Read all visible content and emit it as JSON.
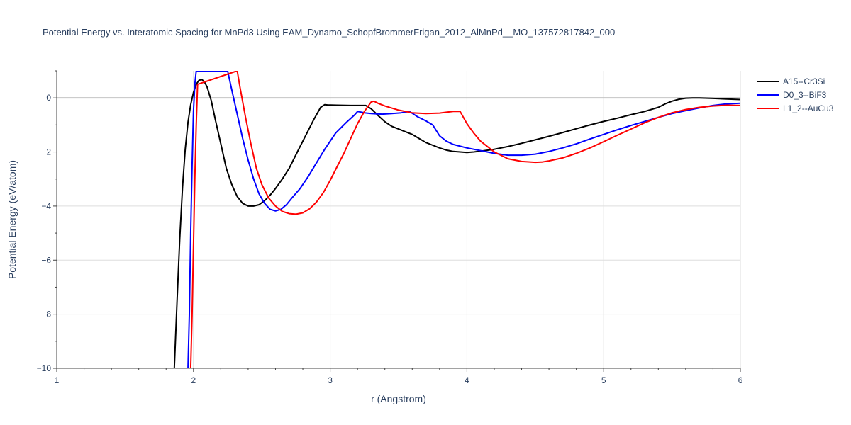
{
  "chart_data": {
    "type": "line",
    "title": "Potential Energy vs. Interatomic Spacing for MnPd3 Using EAM_Dynamo_SchopfBrommerFrigan_2012_AlMnPd__MO_137572817842_000",
    "xlabel": "r (Angstrom)",
    "ylabel": "Potential Energy (eV/atom)",
    "xlim": [
      1,
      6
    ],
    "ylim": [
      -10,
      1
    ],
    "xticks": [
      1,
      2,
      3,
      4,
      5,
      6
    ],
    "xtick_labels": [
      "1",
      "2",
      "3",
      "4",
      "5",
      "6"
    ],
    "yticks": [
      -10,
      -8,
      -6,
      -4,
      -2,
      0
    ],
    "ytick_labels": [
      "−10",
      "−8",
      "−6",
      "−4",
      "−2",
      "0"
    ],
    "grid": true,
    "legend_position": "top-right",
    "series": [
      {
        "name": "A15--Cr3Si",
        "color": "#000000",
        "x": [
          1.86,
          1.88,
          1.9,
          1.92,
          1.94,
          1.96,
          1.98,
          2.0,
          2.02,
          2.04,
          2.06,
          2.08,
          2.1,
          2.13,
          2.16,
          2.2,
          2.24,
          2.28,
          2.32,
          2.36,
          2.4,
          2.44,
          2.48,
          2.52,
          2.56,
          2.6,
          2.65,
          2.7,
          2.76,
          2.82,
          2.88,
          2.93,
          2.96,
          2.98,
          3.05,
          3.15,
          3.26,
          3.3,
          3.35,
          3.4,
          3.45,
          3.5,
          3.55,
          3.6,
          3.65,
          3.7,
          3.75,
          3.8,
          3.85,
          3.9,
          3.95,
          4.0,
          4.05,
          4.1,
          4.2,
          4.3,
          4.4,
          4.5,
          4.6,
          4.7,
          4.8,
          4.9,
          5.0,
          5.1,
          5.2,
          5.3,
          5.4,
          5.45,
          5.5,
          5.55,
          5.6,
          5.65,
          5.7,
          5.8,
          5.9,
          6.0
        ],
        "y": [
          -10.0,
          -7.5,
          -5.2,
          -3.3,
          -1.9,
          -0.9,
          -0.25,
          0.2,
          0.5,
          0.65,
          0.68,
          0.6,
          0.4,
          -0.1,
          -0.8,
          -1.7,
          -2.6,
          -3.2,
          -3.65,
          -3.9,
          -4.0,
          -4.0,
          -3.95,
          -3.8,
          -3.6,
          -3.35,
          -3.0,
          -2.6,
          -2.0,
          -1.4,
          -0.8,
          -0.35,
          -0.25,
          -0.26,
          -0.27,
          -0.28,
          -0.28,
          -0.4,
          -0.65,
          -0.88,
          -1.05,
          -1.15,
          -1.25,
          -1.35,
          -1.5,
          -1.65,
          -1.75,
          -1.85,
          -1.93,
          -1.98,
          -2.0,
          -2.02,
          -2.0,
          -1.97,
          -1.9,
          -1.8,
          -1.68,
          -1.55,
          -1.42,
          -1.28,
          -1.14,
          -1.0,
          -0.87,
          -0.75,
          -0.62,
          -0.5,
          -0.35,
          -0.22,
          -0.12,
          -0.05,
          -0.01,
          0.0,
          0.0,
          -0.02,
          -0.04,
          -0.06
        ]
      },
      {
        "name": "D0_3--BiF3",
        "color": "#0000ff",
        "x": [
          1.96,
          1.97,
          1.98,
          1.99,
          2.0,
          2.01,
          2.02,
          2.25,
          2.28,
          2.32,
          2.36,
          2.4,
          2.44,
          2.48,
          2.52,
          2.56,
          2.6,
          2.64,
          2.68,
          2.72,
          2.78,
          2.84,
          2.9,
          2.96,
          3.04,
          3.12,
          3.18,
          3.2,
          3.25,
          3.3,
          3.38,
          3.45,
          3.52,
          3.58,
          3.64,
          3.7,
          3.75,
          3.8,
          3.85,
          3.9,
          4.0,
          4.1,
          4.2,
          4.3,
          4.4,
          4.5,
          4.6,
          4.7,
          4.8,
          4.9,
          5.0,
          5.1,
          5.2,
          5.3,
          5.4,
          5.5,
          5.6,
          5.7,
          5.8,
          5.9,
          6.0
        ],
        "y": [
          -10.0,
          -8.0,
          -5.0,
          -2.5,
          -0.5,
          0.5,
          1.0,
          1.0,
          0.3,
          -0.6,
          -1.5,
          -2.3,
          -3.0,
          -3.55,
          -3.9,
          -4.12,
          -4.18,
          -4.12,
          -3.95,
          -3.7,
          -3.35,
          -2.9,
          -2.4,
          -1.9,
          -1.3,
          -0.9,
          -0.62,
          -0.5,
          -0.55,
          -0.58,
          -0.6,
          -0.58,
          -0.55,
          -0.5,
          -0.7,
          -0.85,
          -1.0,
          -1.4,
          -1.6,
          -1.72,
          -1.85,
          -1.95,
          -2.05,
          -2.12,
          -2.12,
          -2.08,
          -1.98,
          -1.85,
          -1.7,
          -1.52,
          -1.35,
          -1.18,
          -1.02,
          -0.87,
          -0.72,
          -0.58,
          -0.47,
          -0.37,
          -0.28,
          -0.22,
          -0.2
        ]
      },
      {
        "name": "L1_2--AuCu3",
        "color": "#ff0000",
        "x": [
          1.98,
          1.99,
          2.0,
          2.01,
          2.02,
          2.03,
          2.32,
          2.34,
          2.38,
          2.42,
          2.46,
          2.5,
          2.55,
          2.6,
          2.65,
          2.7,
          2.75,
          2.8,
          2.85,
          2.9,
          2.95,
          3.0,
          3.05,
          3.1,
          3.15,
          3.2,
          3.25,
          3.3,
          3.32,
          3.35,
          3.4,
          3.5,
          3.6,
          3.7,
          3.8,
          3.85,
          3.9,
          3.95,
          4.0,
          4.05,
          4.1,
          4.2,
          4.3,
          4.4,
          4.5,
          4.55,
          4.6,
          4.7,
          4.8,
          4.9,
          5.0,
          5.1,
          5.2,
          5.3,
          5.4,
          5.5,
          5.6,
          5.7,
          5.8,
          5.9,
          6.0
        ],
        "y": [
          -10.0,
          -8.0,
          -5.5,
          -3.0,
          -1.0,
          0.5,
          1.0,
          0.4,
          -0.7,
          -1.7,
          -2.6,
          -3.2,
          -3.7,
          -4.0,
          -4.2,
          -4.28,
          -4.3,
          -4.25,
          -4.1,
          -3.85,
          -3.5,
          -3.05,
          -2.55,
          -2.05,
          -1.5,
          -0.95,
          -0.5,
          -0.15,
          -0.12,
          -0.2,
          -0.3,
          -0.45,
          -0.55,
          -0.58,
          -0.56,
          -0.53,
          -0.5,
          -0.5,
          -0.95,
          -1.3,
          -1.6,
          -2.0,
          -2.25,
          -2.35,
          -2.38,
          -2.37,
          -2.33,
          -2.22,
          -2.05,
          -1.85,
          -1.62,
          -1.38,
          -1.15,
          -0.92,
          -0.72,
          -0.55,
          -0.43,
          -0.35,
          -0.3,
          -0.27,
          -0.28
        ]
      }
    ]
  }
}
